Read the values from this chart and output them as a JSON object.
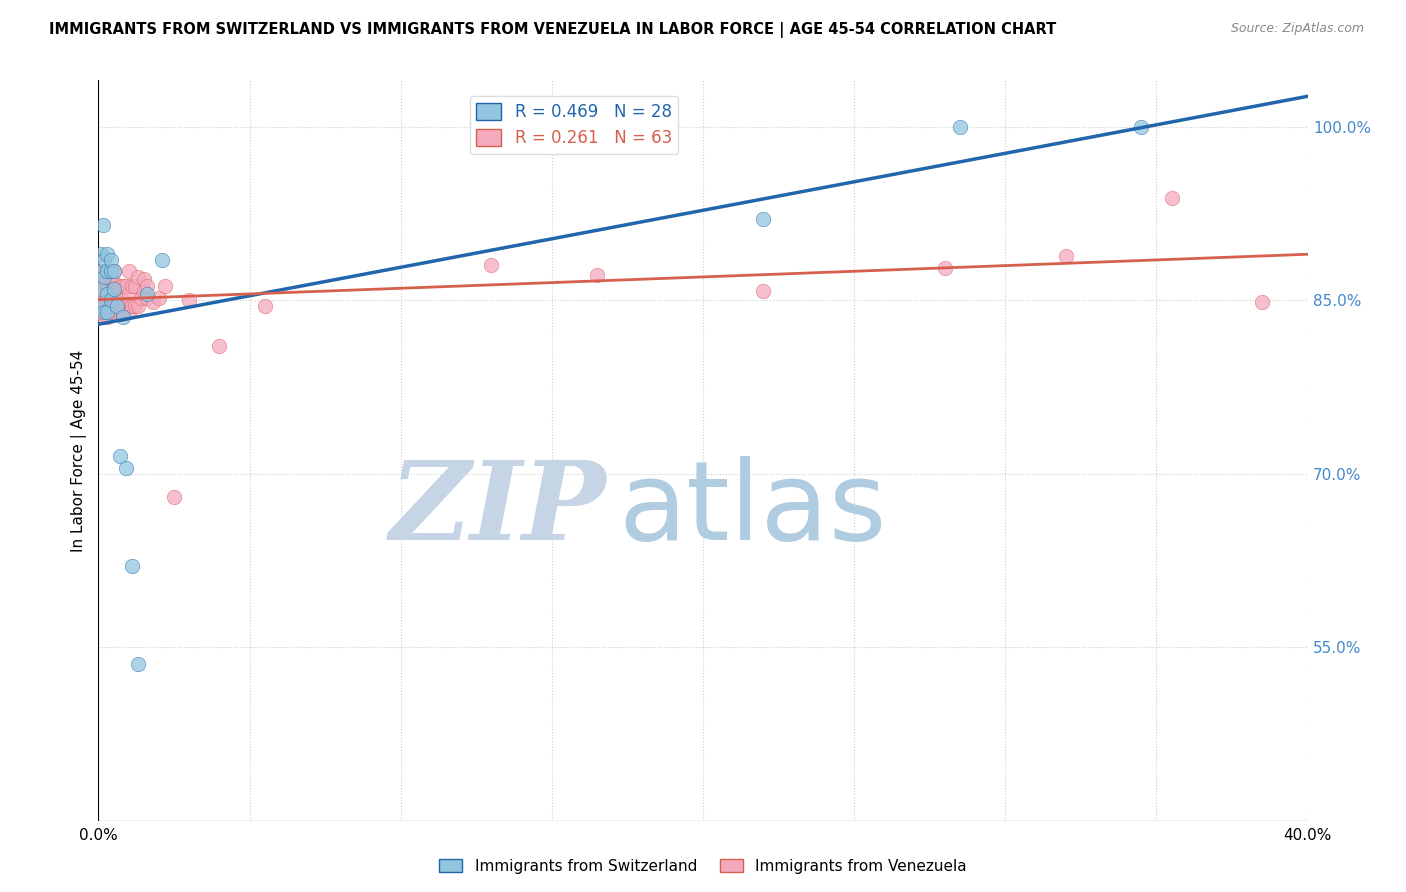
{
  "title": "IMMIGRANTS FROM SWITZERLAND VS IMMIGRANTS FROM VENEZUELA IN LABOR FORCE | AGE 45-54 CORRELATION CHART",
  "source": "Source: ZipAtlas.com",
  "ylabel": "In Labor Force | Age 45-54",
  "ylabel_right_ticks": [
    "100.0%",
    "85.0%",
    "70.0%",
    "55.0%"
  ],
  "ylabel_right_values": [
    1.0,
    0.85,
    0.7,
    0.55
  ],
  "xlim": [
    0.0,
    0.4
  ],
  "ylim": [
    0.4,
    1.04
  ],
  "R_switzerland": 0.469,
  "N_switzerland": 28,
  "R_venezuela": 0.261,
  "N_venezuela": 63,
  "color_switzerland": "#92c5de",
  "color_venezuela": "#f4a9be",
  "color_line_switzerland": "#2166ac",
  "color_line_venezuela": "#d6604d",
  "watermark_zip": "ZIP",
  "watermark_atlas": "atlas",
  "watermark_color_zip": "#c5d5e5",
  "watermark_color_atlas": "#b0cce0",
  "legend_label_switzerland": "Immigrants from Switzerland",
  "legend_label_venezuela": "Immigrants from Venezuela",
  "swiss_x": [
    0.0005,
    0.001,
    0.001,
    0.001,
    0.0015,
    0.002,
    0.002,
    0.002,
    0.003,
    0.003,
    0.003,
    0.003,
    0.004,
    0.004,
    0.004,
    0.005,
    0.005,
    0.006,
    0.007,
    0.008,
    0.009,
    0.011,
    0.013,
    0.016,
    0.021,
    0.22,
    0.285,
    0.345
  ],
  "swiss_y": [
    0.845,
    0.86,
    0.875,
    0.89,
    0.915,
    0.84,
    0.87,
    0.885,
    0.84,
    0.855,
    0.875,
    0.89,
    0.85,
    0.875,
    0.885,
    0.86,
    0.875,
    0.845,
    0.715,
    0.835,
    0.705,
    0.62,
    0.535,
    0.855,
    0.885,
    0.92,
    1.0,
    1.0
  ],
  "venez_x": [
    0.0005,
    0.001,
    0.001,
    0.001,
    0.001,
    0.0015,
    0.002,
    0.002,
    0.002,
    0.002,
    0.002,
    0.003,
    0.003,
    0.003,
    0.003,
    0.003,
    0.004,
    0.004,
    0.004,
    0.004,
    0.005,
    0.005,
    0.005,
    0.005,
    0.005,
    0.006,
    0.006,
    0.007,
    0.007,
    0.007,
    0.008,
    0.008,
    0.008,
    0.009,
    0.009,
    0.01,
    0.01,
    0.01,
    0.011,
    0.011,
    0.012,
    0.012,
    0.013,
    0.013,
    0.014,
    0.015,
    0.015,
    0.016,
    0.016,
    0.018,
    0.02,
    0.022,
    0.025,
    0.03,
    0.04,
    0.055,
    0.13,
    0.165,
    0.22,
    0.28,
    0.32,
    0.355,
    0.385
  ],
  "venez_y": [
    0.845,
    0.84,
    0.855,
    0.865,
    0.875,
    0.855,
    0.835,
    0.845,
    0.855,
    0.865,
    0.875,
    0.835,
    0.845,
    0.855,
    0.865,
    0.875,
    0.84,
    0.85,
    0.86,
    0.87,
    0.84,
    0.85,
    0.858,
    0.865,
    0.875,
    0.848,
    0.858,
    0.84,
    0.852,
    0.862,
    0.838,
    0.85,
    0.862,
    0.845,
    0.862,
    0.84,
    0.855,
    0.875,
    0.845,
    0.862,
    0.845,
    0.862,
    0.845,
    0.87,
    0.852,
    0.858,
    0.868,
    0.852,
    0.862,
    0.848,
    0.852,
    0.862,
    0.68,
    0.85,
    0.81,
    0.845,
    0.88,
    0.872,
    0.858,
    0.878,
    0.888,
    0.938,
    0.848
  ]
}
